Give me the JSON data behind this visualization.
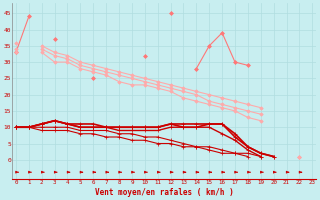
{
  "xlabel": "Vent moyen/en rafales ( km/h )",
  "background_color": "#c8eef0",
  "grid_color": "#b0dde0",
  "x": [
    0,
    1,
    2,
    3,
    4,
    5,
    6,
    7,
    8,
    9,
    10,
    11,
    12,
    13,
    14,
    15,
    16,
    17,
    18,
    19,
    20,
    21,
    22,
    23
  ],
  "series": [
    {
      "color": "#ff7777",
      "linewidth": 0.8,
      "marker": "D",
      "markersize": 2.0,
      "data": [
        33,
        44,
        null,
        37,
        null,
        null,
        25,
        null,
        null,
        null,
        32,
        null,
        45,
        null,
        28,
        35,
        39,
        30,
        29,
        null,
        null,
        null,
        null,
        null
      ]
    },
    {
      "color": "#ffaaaa",
      "linewidth": 0.8,
      "marker": "D",
      "markersize": 1.8,
      "data": [
        36,
        null,
        35,
        33,
        32,
        30,
        29,
        28,
        27,
        26,
        25,
        24,
        23,
        22,
        21,
        20,
        19,
        18,
        17,
        16,
        null,
        null,
        1,
        null
      ]
    },
    {
      "color": "#ffaaaa",
      "linewidth": 0.8,
      "marker": "D",
      "markersize": 1.8,
      "data": [
        34,
        null,
        34,
        32,
        31,
        29,
        28,
        27,
        26,
        25,
        24,
        23,
        22,
        21,
        20,
        18,
        17,
        16,
        15,
        14,
        null,
        null,
        1,
        null
      ]
    },
    {
      "color": "#ffaaaa",
      "linewidth": 0.8,
      "marker": "D",
      "markersize": 1.8,
      "data": [
        33,
        null,
        33,
        30,
        30,
        28,
        27,
        26,
        24,
        23,
        23,
        22,
        21,
        19,
        18,
        17,
        16,
        15,
        13,
        12,
        null,
        null,
        1,
        null
      ]
    },
    {
      "color": "#cc0000",
      "linewidth": 1.2,
      "marker": "+",
      "markersize": 3.5,
      "data": [
        10,
        10,
        11,
        12,
        11,
        11,
        11,
        10,
        10,
        10,
        10,
        10,
        11,
        11,
        11,
        11,
        11,
        8,
        4,
        2,
        1,
        null,
        null,
        null
      ]
    },
    {
      "color": "#cc0000",
      "linewidth": 1.2,
      "marker": "+",
      "markersize": 3.5,
      "data": [
        10,
        10,
        11,
        12,
        11,
        10,
        10,
        10,
        10,
        10,
        10,
        10,
        11,
        10,
        10,
        11,
        11,
        7,
        4,
        2,
        1,
        null,
        null,
        null
      ]
    },
    {
      "color": "#cc0000",
      "linewidth": 1.0,
      "marker": "+",
      "markersize": 3.5,
      "data": [
        10,
        10,
        11,
        12,
        11,
        10,
        10,
        10,
        9,
        9,
        9,
        9,
        10,
        10,
        10,
        10,
        8,
        6,
        3,
        1,
        null,
        null,
        null,
        null
      ]
    },
    {
      "color": "#cc0000",
      "linewidth": 0.8,
      "marker": "+",
      "markersize": 3.0,
      "data": [
        10,
        10,
        10,
        10,
        10,
        9,
        9,
        9,
        8,
        8,
        7,
        7,
        6,
        5,
        4,
        4,
        3,
        2,
        2,
        1,
        null,
        null,
        null,
        null
      ]
    },
    {
      "color": "#cc0000",
      "linewidth": 0.8,
      "marker": "+",
      "markersize": 3.0,
      "data": [
        10,
        10,
        9,
        9,
        9,
        8,
        8,
        7,
        7,
        6,
        6,
        5,
        5,
        4,
        4,
        3,
        2,
        2,
        1,
        null,
        null,
        null,
        null,
        null
      ]
    }
  ],
  "yticks": [
    0,
    5,
    10,
    15,
    20,
    25,
    30,
    35,
    40,
    45
  ],
  "ylim": [
    -6,
    48
  ],
  "xlim": [
    -0.3,
    23.3
  ],
  "figsize": [
    3.2,
    2.0
  ],
  "dpi": 100
}
